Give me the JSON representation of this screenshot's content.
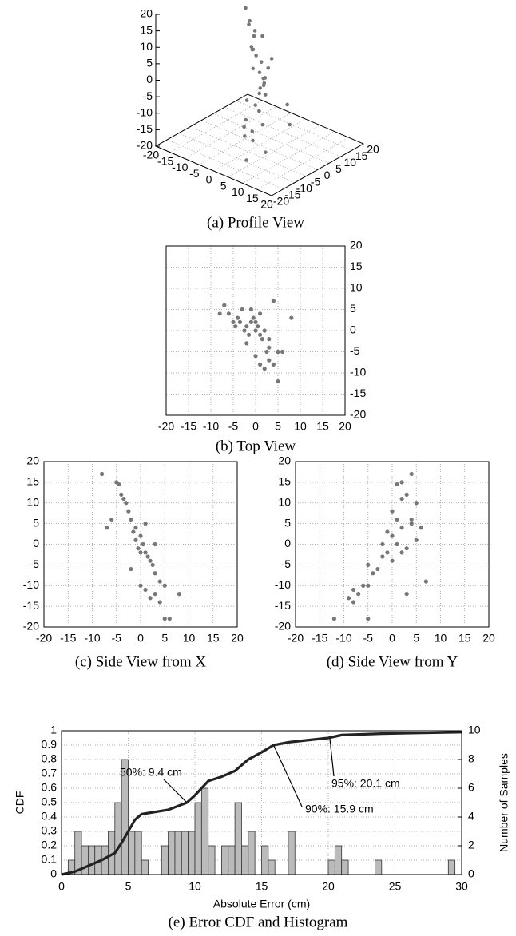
{
  "chart_data": [
    {
      "type": "scatter3d",
      "caption": "(a) Profile View",
      "color": "#777777",
      "grid": true,
      "x": [
        -8,
        -5,
        -4.5,
        -4,
        -3,
        -3.5,
        -6,
        -2.5,
        -2,
        -1,
        -1.5,
        0,
        0.5,
        -0.5,
        1,
        1.5,
        2,
        -1,
        0,
        2.5,
        3,
        0,
        1,
        2,
        3,
        4,
        5,
        6,
        8,
        4,
        -7,
        1,
        3,
        -2,
        5
      ],
      "y": [
        4,
        2,
        1,
        3,
        5,
        2,
        4,
        0,
        1,
        2,
        -1,
        0,
        1,
        3,
        -1,
        -2,
        0,
        5,
        2,
        -5,
        -4,
        -6,
        -8,
        -9,
        -7,
        -8,
        -12,
        -5,
        3,
        7,
        6,
        4,
        -2,
        -3,
        -5
      ],
      "z": [
        17,
        15,
        14.5,
        12,
        10,
        11,
        6,
        8,
        6,
        4,
        3,
        2,
        0,
        -1,
        -2,
        -3,
        -4,
        1,
        -2,
        -5,
        -7,
        -10,
        -11,
        -13,
        -12,
        -14,
        -18,
        -18,
        -12,
        -9,
        4,
        5,
        0,
        -6,
        -10
      ],
      "xlim": [
        -20,
        20
      ],
      "ylim": [
        -20,
        20
      ],
      "zlim": [
        -20,
        20
      ],
      "xticks": [
        -20,
        -15,
        -10,
        -5,
        0,
        5,
        10,
        15,
        20
      ],
      "yticks": [
        -20,
        -15,
        -10,
        -5,
        0,
        5,
        10,
        15,
        20
      ],
      "zticks": [
        -20,
        -15,
        -10,
        -5,
        0,
        5,
        10,
        15,
        20
      ]
    },
    {
      "type": "scatter",
      "caption": "(b) Top View",
      "color": "#777777",
      "grid": true,
      "x": [
        -8,
        -5,
        -4.5,
        -4,
        -3,
        -3.5,
        -6,
        -2.5,
        -2,
        -1,
        -1.5,
        0,
        0.5,
        -0.5,
        1,
        1.5,
        2,
        -1,
        0,
        2.5,
        3,
        0,
        1,
        2,
        3,
        4,
        5,
        6,
        8,
        4,
        -7,
        1,
        3,
        -2,
        5
      ],
      "values": [
        4,
        2,
        1,
        3,
        5,
        2,
        4,
        0,
        1,
        2,
        -1,
        0,
        1,
        3,
        -1,
        -2,
        0,
        5,
        2,
        -5,
        -4,
        -6,
        -8,
        -9,
        -7,
        -8,
        -12,
        -5,
        3,
        7,
        6,
        4,
        -2,
        -3,
        -5
      ],
      "xlim": [
        -20,
        20
      ],
      "ylim": [
        -20,
        20
      ],
      "xticks": [
        -20,
        -15,
        -10,
        -5,
        0,
        5,
        10,
        15,
        20
      ],
      "yticks": [
        -20,
        -15,
        -10,
        -5,
        0,
        5,
        10,
        15,
        20
      ]
    },
    {
      "type": "scatter",
      "caption": "(c) Side View from X",
      "color": "#777777",
      "grid": true,
      "x": [
        -8,
        -5,
        -4.5,
        -4,
        -3,
        -3.5,
        -6,
        -2.5,
        -2,
        -1,
        -1.5,
        0,
        0.5,
        -0.5,
        1,
        1.5,
        2,
        -1,
        0,
        2.5,
        3,
        0,
        1,
        2,
        3,
        4,
        5,
        6,
        8,
        4,
        -7,
        1,
        3,
        -2,
        5
      ],
      "values": [
        17,
        15,
        14.5,
        12,
        10,
        11,
        6,
        8,
        6,
        4,
        3,
        2,
        0,
        -1,
        -2,
        -3,
        -4,
        1,
        -2,
        -5,
        -7,
        -10,
        -11,
        -13,
        -12,
        -14,
        -18,
        -18,
        -12,
        -9,
        4,
        5,
        0,
        -6,
        -10
      ],
      "xlim": [
        -20,
        20
      ],
      "ylim": [
        -20,
        20
      ],
      "xticks": [
        -20,
        -15,
        -10,
        -5,
        0,
        5,
        10,
        15,
        20
      ],
      "yticks": [
        -20,
        -15,
        -10,
        -5,
        0,
        5,
        10,
        15,
        20
      ]
    },
    {
      "type": "scatter",
      "caption": "(d) Side View from Y",
      "color": "#777777",
      "grid": true,
      "x": [
        4,
        2,
        1,
        3,
        5,
        2,
        4,
        0,
        1,
        2,
        -1,
        0,
        1,
        3,
        -1,
        -2,
        0,
        5,
        2,
        -5,
        -4,
        -6,
        -8,
        -9,
        -7,
        -8,
        -12,
        -5,
        3,
        7,
        6,
        4,
        -2,
        -3,
        -5
      ],
      "values": [
        17,
        15,
        14.5,
        12,
        10,
        11,
        6,
        8,
        6,
        4,
        3,
        2,
        0,
        -1,
        -2,
        -3,
        -4,
        1,
        -2,
        -5,
        -7,
        -10,
        -11,
        -13,
        -12,
        -14,
        -18,
        -18,
        -12,
        -9,
        4,
        5,
        0,
        -6,
        -10
      ],
      "xlim": [
        -20,
        20
      ],
      "ylim": [
        -20,
        20
      ],
      "xticks": [
        -20,
        -15,
        -10,
        -5,
        0,
        5,
        10,
        15,
        20
      ],
      "yticks": [
        -20,
        -15,
        -10,
        -5,
        0,
        5,
        10,
        15,
        20
      ]
    },
    {
      "type": "cdf_histogram",
      "caption": "(e) Error CDF and Histogram",
      "grid": true,
      "xlabel": "Absolute Error (cm)",
      "ylabel": "CDF",
      "y2label": "Number of Samples",
      "xlim": [
        0,
        30
      ],
      "xticks": [
        0,
        5,
        10,
        15,
        20,
        25,
        30
      ],
      "ylim": [
        0,
        1
      ],
      "yticks": [
        0,
        0.1,
        0.2,
        0.3,
        0.4,
        0.5,
        0.6,
        0.7,
        0.8,
        0.9,
        1
      ],
      "y2lim": [
        0,
        10
      ],
      "y2ticks": [
        0,
        2,
        4,
        6,
        8,
        10
      ],
      "histogram": {
        "axis": "y2",
        "color": "#bbbbbb",
        "bins": [
          0,
          0.5,
          1,
          1.5,
          2,
          2.5,
          3,
          3.5,
          4,
          4.5,
          5,
          5.5,
          6,
          6.5,
          7,
          7.5,
          8,
          8.5,
          9,
          9.5,
          10,
          10.5,
          11,
          11.5,
          12,
          12.5,
          13,
          13.5,
          14,
          14.5,
          15,
          15.5,
          16,
          16.5,
          17,
          17.5,
          18,
          18.5,
          19,
          19.5,
          20,
          20.5,
          21,
          21.5,
          22,
          22.5,
          23,
          23.5,
          24,
          24.5,
          25,
          25.5,
          26,
          26.5,
          27,
          27.5,
          28,
          28.5,
          29,
          29.5,
          30
        ],
        "counts": [
          0,
          1,
          3,
          2,
          2,
          2,
          2,
          3,
          5,
          8,
          3,
          3,
          1,
          0,
          0,
          2,
          3,
          3,
          3,
          3,
          5,
          6,
          2,
          0,
          2,
          2,
          5,
          2,
          3,
          0,
          2,
          1,
          0,
          0,
          3,
          0,
          0,
          0,
          0,
          0,
          1,
          2,
          1,
          0,
          0,
          0,
          0,
          1,
          0,
          0,
          0,
          0,
          0,
          0,
          0,
          0,
          0,
          0,
          1,
          0
        ]
      },
      "line": {
        "color": "#222222",
        "x": [
          0,
          1,
          2,
          3,
          4,
          4.5,
          5,
          5.5,
          6,
          8,
          9.4,
          10,
          10.5,
          11,
          12,
          13,
          14,
          15,
          15.9,
          17,
          18,
          20,
          21,
          24,
          30
        ],
        "values": [
          0,
          0.02,
          0.06,
          0.1,
          0.15,
          0.22,
          0.3,
          0.38,
          0.42,
          0.45,
          0.5,
          0.55,
          0.6,
          0.65,
          0.68,
          0.72,
          0.8,
          0.85,
          0.9,
          0.92,
          0.93,
          0.95,
          0.97,
          0.98,
          0.99
        ]
      },
      "annotations": [
        "50%: 9.4 cm",
        "90%: 15.9 cm",
        "95%: 20.1 cm"
      ]
    }
  ]
}
